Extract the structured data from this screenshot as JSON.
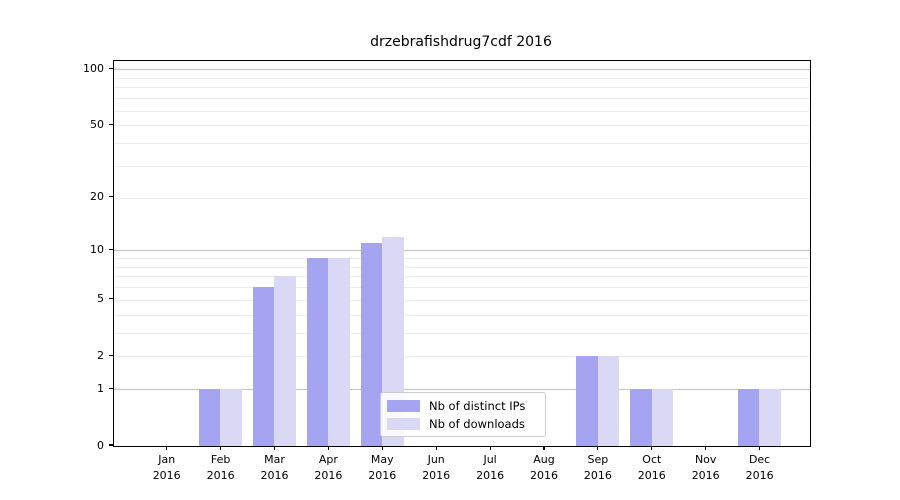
{
  "title": "drzebrafishdrug7cdf 2016",
  "chart_data": {
    "type": "bar",
    "title": "drzebrafishdrug7cdf 2016",
    "categories": [
      "Jan",
      "Feb",
      "Mar",
      "Apr",
      "May",
      "Jun",
      "Jul",
      "Aug",
      "Sep",
      "Oct",
      "Nov",
      "Dec"
    ],
    "year": "2016",
    "series": [
      {
        "name": "Nb of distinct IPs",
        "color": "#a4a4f0",
        "values": [
          0,
          1,
          6,
          9,
          11,
          0,
          0,
          0,
          2,
          1,
          0,
          1
        ]
      },
      {
        "name": "Nb of downloads",
        "color": "#d9d9f6",
        "values": [
          0,
          1,
          7,
          9,
          12,
          0,
          0,
          0,
          2,
          1,
          0,
          1
        ]
      }
    ],
    "yscale": "log1p",
    "ylim": [
      0,
      111
    ],
    "ytick_values": [
      100,
      50,
      20,
      10,
      5,
      2,
      1,
      0
    ],
    "ytick_labels": [
      "100",
      "50",
      "20",
      "10",
      "5",
      "2",
      "1",
      "0"
    ],
    "grid": true,
    "legend_position": "lower-center",
    "xlabel": "",
    "ylabel": ""
  }
}
